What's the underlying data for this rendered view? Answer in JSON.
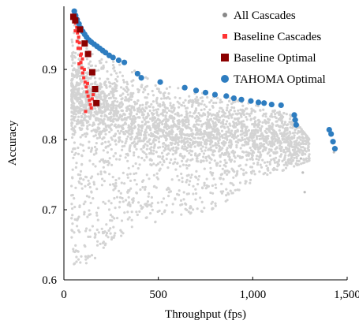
{
  "chart_data": {
    "type": "scatter",
    "xlabel": "Throughput (fps)",
    "ylabel": "Accuracy",
    "xlim": [
      0,
      1500
    ],
    "ylim": [
      0.6,
      0.99
    ],
    "x_ticks": [
      0,
      500,
      1000,
      1500
    ],
    "x_tick_labels": [
      "0",
      "500",
      "1,000",
      "1,500"
    ],
    "y_ticks": [
      0.6,
      0.7,
      0.8,
      0.9
    ],
    "y_tick_labels": [
      "0.6",
      "0.7",
      "0.8",
      "0.9"
    ],
    "grid": false,
    "legend_position": "top-right",
    "series": [
      {
        "name": "All Cascades",
        "marker": "circle",
        "color": "#d3d3d3",
        "legend_color": "#888888",
        "cloud": {
          "description_points_sampled_from_envelope": true,
          "count": 3200,
          "x_range": [
            40,
            1300
          ],
          "upper_envelope": [
            [
              60,
              0.975
            ],
            [
              100,
              0.955
            ],
            [
              200,
              0.925
            ],
            [
              400,
              0.895
            ],
            [
              600,
              0.875
            ],
            [
              800,
              0.865
            ],
            [
              1000,
              0.85
            ],
            [
              1200,
              0.835
            ],
            [
              1300,
              0.8
            ]
          ],
          "lower_envelope": [
            [
              40,
              0.62
            ],
            [
              100,
              0.62
            ],
            [
              130,
              0.62
            ],
            [
              250,
              0.655
            ],
            [
              400,
              0.675
            ],
            [
              600,
              0.69
            ],
            [
              800,
              0.7
            ],
            [
              1000,
              0.74
            ],
            [
              1200,
              0.76
            ],
            [
              1300,
              0.77
            ]
          ],
          "dense_band": [
            [
              100,
              0.86
            ],
            [
              400,
              0.82
            ],
            [
              800,
              0.81
            ],
            [
              1200,
              0.8
            ]
          ]
        },
        "outliers": [
          [
            1255,
            0.773
          ],
          [
            1265,
            0.753
          ],
          [
            1275,
            0.725
          ],
          [
            1430,
            0.782
          ]
        ]
      },
      {
        "name": "Baseline Cascades",
        "marker": "square",
        "color": "#ff3333",
        "points": [
          [
            52,
            0.978
          ],
          [
            58,
            0.972
          ],
          [
            62,
            0.966
          ],
          [
            68,
            0.96
          ],
          [
            72,
            0.952
          ],
          [
            78,
            0.946
          ],
          [
            82,
            0.938
          ],
          [
            88,
            0.93
          ],
          [
            92,
            0.922
          ],
          [
            98,
            0.915
          ],
          [
            80,
            0.908
          ],
          [
            95,
            0.902
          ],
          [
            100,
            0.895
          ],
          [
            105,
            0.888
          ],
          [
            112,
            0.882
          ],
          [
            118,
            0.875
          ],
          [
            122,
            0.868
          ],
          [
            128,
            0.862
          ],
          [
            135,
            0.856
          ],
          [
            140,
            0.85
          ],
          [
            145,
            0.845
          ],
          [
            150,
            0.858
          ],
          [
            155,
            0.864
          ],
          [
            88,
            0.92
          ],
          [
            108,
            0.9
          ],
          [
            125,
            0.88
          ],
          [
            70,
            0.94
          ],
          [
            115,
            0.84
          ],
          [
            160,
            0.872
          ],
          [
            60,
            0.955
          ],
          [
            75,
            0.93
          ],
          [
            90,
            0.91
          ]
        ]
      },
      {
        "name": "Baseline Optimal",
        "marker": "square",
        "color": "#8b0000",
        "points": [
          [
            50,
            0.975
          ],
          [
            60,
            0.97
          ],
          [
            85,
            0.957
          ],
          [
            110,
            0.937
          ],
          [
            128,
            0.922
          ],
          [
            150,
            0.896
          ],
          [
            165,
            0.872
          ],
          [
            172,
            0.852
          ]
        ]
      },
      {
        "name": "TAHOMA Optimal",
        "marker": "circle",
        "color": "#2e7dc0",
        "points": [
          [
            55,
            0.983
          ],
          [
            62,
            0.977
          ],
          [
            70,
            0.971
          ],
          [
            80,
            0.965
          ],
          [
            90,
            0.959
          ],
          [
            100,
            0.954
          ],
          [
            110,
            0.95
          ],
          [
            120,
            0.946
          ],
          [
            132,
            0.942
          ],
          [
            145,
            0.939
          ],
          [
            160,
            0.936
          ],
          [
            175,
            0.933
          ],
          [
            190,
            0.93
          ],
          [
            205,
            0.927
          ],
          [
            220,
            0.924
          ],
          [
            240,
            0.92
          ],
          [
            260,
            0.917
          ],
          [
            290,
            0.913
          ],
          [
            320,
            0.91
          ],
          [
            390,
            0.894
          ],
          [
            410,
            0.888
          ],
          [
            510,
            0.882
          ],
          [
            640,
            0.874
          ],
          [
            700,
            0.87
          ],
          [
            750,
            0.867
          ],
          [
            800,
            0.864
          ],
          [
            860,
            0.862
          ],
          [
            900,
            0.859
          ],
          [
            940,
            0.857
          ],
          [
            990,
            0.855
          ],
          [
            1030,
            0.853
          ],
          [
            1060,
            0.852
          ],
          [
            1100,
            0.85
          ],
          [
            1150,
            0.849
          ],
          [
            1220,
            0.835
          ],
          [
            1225,
            0.828
          ],
          [
            1230,
            0.821
          ],
          [
            1405,
            0.814
          ],
          [
            1415,
            0.808
          ],
          [
            1425,
            0.797
          ],
          [
            1435,
            0.787
          ]
        ]
      }
    ]
  }
}
